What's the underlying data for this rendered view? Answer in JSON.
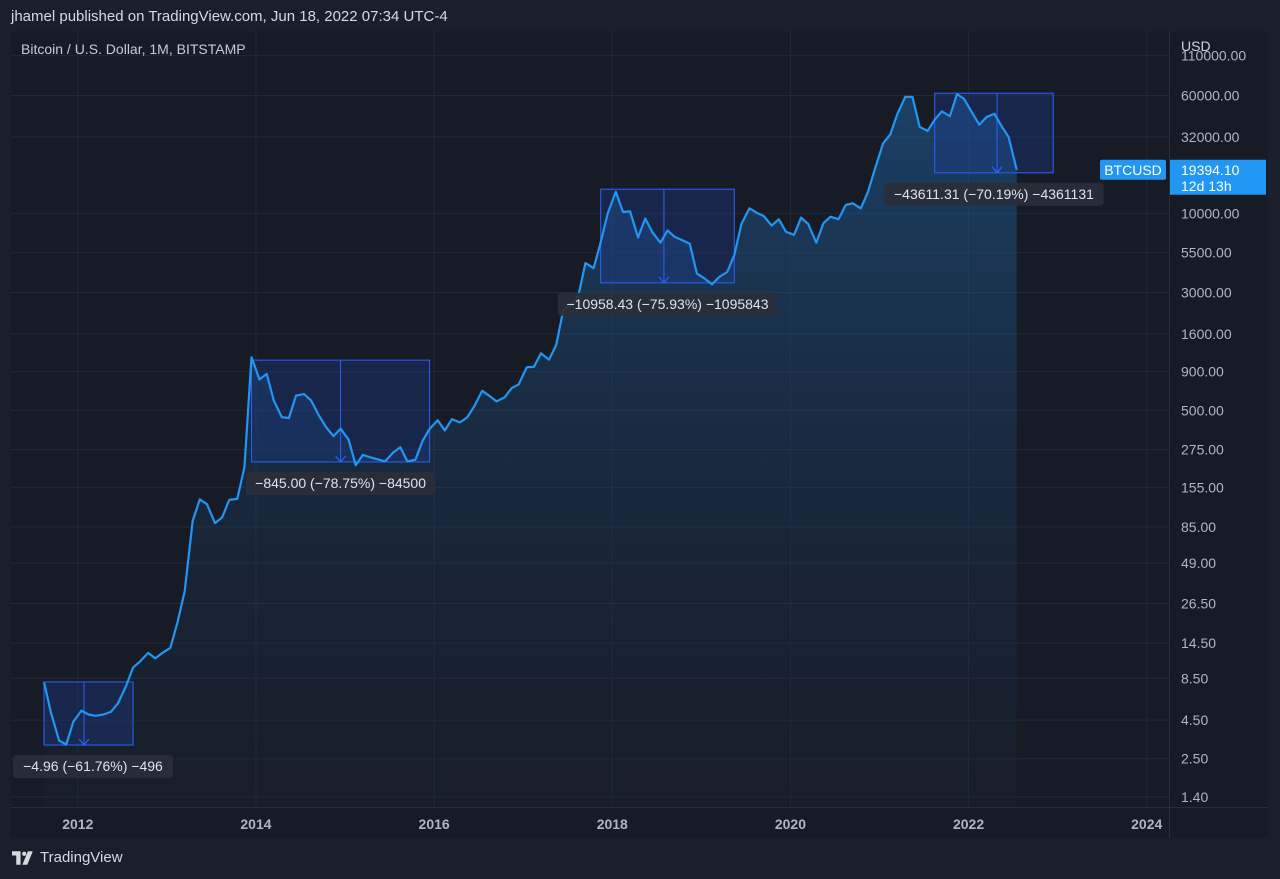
{
  "header": {
    "published_text": "jhamel published on TradingView.com, Jun 18, 2022 07:34 UTC-4",
    "symbol_title": "Bitcoin / U.S. Dollar, 1M, BITSTAMP"
  },
  "footer": {
    "brand_label": "TradingView",
    "logo_icon": "tradingview-logo-icon"
  },
  "colors": {
    "background": "#171b26",
    "line": "#2196f3",
    "box_fill": "#1e3a8a",
    "box_stroke": "#2962ff",
    "price_tag": "#2196f3"
  },
  "chart_data": {
    "type": "area",
    "scale": "log",
    "currency_label": "USD",
    "xlim": [
      2011.25,
      2024.25
    ],
    "ylim": [
      1.2,
      160000
    ],
    "x_ticks": [
      {
        "value": 2012,
        "label": "2012"
      },
      {
        "value": 2014,
        "label": "2014"
      },
      {
        "value": 2016,
        "label": "2016"
      },
      {
        "value": 2018,
        "label": "2018"
      },
      {
        "value": 2020,
        "label": "2020"
      },
      {
        "value": 2022,
        "label": "2022"
      },
      {
        "value": 2024,
        "label": "2024"
      }
    ],
    "y_ticks": [
      {
        "value": 110000,
        "label": "110000.00"
      },
      {
        "value": 60000,
        "label": "60000.00"
      },
      {
        "value": 32000,
        "label": "32000.00"
      },
      {
        "value": 10000,
        "label": "10000.00"
      },
      {
        "value": 5500,
        "label": "5500.00"
      },
      {
        "value": 3000,
        "label": "3000.00"
      },
      {
        "value": 1600,
        "label": "1600.00"
      },
      {
        "value": 900,
        "label": "900.00"
      },
      {
        "value": 500,
        "label": "500.00"
      },
      {
        "value": 275,
        "label": "275.00"
      },
      {
        "value": 155,
        "label": "155.00"
      },
      {
        "value": 85,
        "label": "85.00"
      },
      {
        "value": 49,
        "label": "49.00"
      },
      {
        "value": 26.5,
        "label": "26.50"
      },
      {
        "value": 14.5,
        "label": "14.50"
      },
      {
        "value": 8.5,
        "label": "8.50"
      },
      {
        "value": 4.5,
        "label": "4.50"
      },
      {
        "value": 2.5,
        "label": "2.50"
      },
      {
        "value": 1.4,
        "label": "1.40"
      }
    ],
    "series": [
      {
        "name": "BTCUSD",
        "points": [
          [
            2011.62,
            8.0
          ],
          [
            2011.7,
            5.0
          ],
          [
            2011.79,
            3.3
          ],
          [
            2011.87,
            3.1
          ],
          [
            2011.95,
            4.4
          ],
          [
            2012.04,
            5.2
          ],
          [
            2012.12,
            4.9
          ],
          [
            2012.2,
            4.8
          ],
          [
            2012.29,
            4.9
          ],
          [
            2012.37,
            5.1
          ],
          [
            2012.45,
            5.8
          ],
          [
            2012.54,
            7.5
          ],
          [
            2012.62,
            10.0
          ],
          [
            2012.7,
            11.0
          ],
          [
            2012.79,
            12.5
          ],
          [
            2012.87,
            11.5
          ],
          [
            2012.95,
            12.5
          ],
          [
            2013.04,
            13.5
          ],
          [
            2013.12,
            20.0
          ],
          [
            2013.2,
            32.0
          ],
          [
            2013.29,
            93.0
          ],
          [
            2013.37,
            129.0
          ],
          [
            2013.45,
            120.0
          ],
          [
            2013.54,
            90.0
          ],
          [
            2013.62,
            98.0
          ],
          [
            2013.7,
            128.0
          ],
          [
            2013.79,
            130.0
          ],
          [
            2013.87,
            210.0
          ],
          [
            2013.95,
            1120.0
          ],
          [
            2014.04,
            800.0
          ],
          [
            2014.12,
            870.0
          ],
          [
            2014.2,
            580.0
          ],
          [
            2014.29,
            450.0
          ],
          [
            2014.37,
            445.0
          ],
          [
            2014.45,
            625.0
          ],
          [
            2014.54,
            640.0
          ],
          [
            2014.62,
            580.0
          ],
          [
            2014.7,
            470.0
          ],
          [
            2014.79,
            385.0
          ],
          [
            2014.87,
            338.0
          ],
          [
            2014.95,
            378.0
          ],
          [
            2015.04,
            320.0
          ],
          [
            2015.12,
            217.0
          ],
          [
            2015.2,
            254.0
          ],
          [
            2015.29,
            244.0
          ],
          [
            2015.37,
            237.0
          ],
          [
            2015.45,
            230.0
          ],
          [
            2015.54,
            263.0
          ],
          [
            2015.62,
            285.0
          ],
          [
            2015.7,
            230.0
          ],
          [
            2015.79,
            236.0
          ],
          [
            2015.87,
            313.0
          ],
          [
            2015.95,
            378.0
          ],
          [
            2016.04,
            430.0
          ],
          [
            2016.12,
            368.0
          ],
          [
            2016.2,
            437.0
          ],
          [
            2016.29,
            416.0
          ],
          [
            2016.37,
            448.0
          ],
          [
            2016.45,
            531.0
          ],
          [
            2016.54,
            673.0
          ],
          [
            2016.62,
            624.0
          ],
          [
            2016.7,
            573.0
          ],
          [
            2016.79,
            609.0
          ],
          [
            2016.87,
            700.0
          ],
          [
            2016.95,
            742.0
          ],
          [
            2017.04,
            963.0
          ],
          [
            2017.12,
            968.0
          ],
          [
            2017.2,
            1190.0
          ],
          [
            2017.29,
            1080.0
          ],
          [
            2017.37,
            1350.0
          ],
          [
            2017.45,
            2300.0
          ],
          [
            2017.54,
            2480.0
          ],
          [
            2017.62,
            2870.0
          ],
          [
            2017.7,
            4700.0
          ],
          [
            2017.79,
            4340.0
          ],
          [
            2017.87,
            6450.0
          ],
          [
            2017.95,
            10000.0
          ],
          [
            2018.04,
            13880.0
          ],
          [
            2018.12,
            10200.0
          ],
          [
            2018.2,
            10300.0
          ],
          [
            2018.29,
            6930.0
          ],
          [
            2018.37,
            9240.0
          ],
          [
            2018.45,
            7500.0
          ],
          [
            2018.54,
            6400.0
          ],
          [
            2018.62,
            7700.0
          ],
          [
            2018.7,
            7000.0
          ],
          [
            2018.79,
            6620.0
          ],
          [
            2018.87,
            6300.0
          ],
          [
            2018.95,
            4000.0
          ],
          [
            2019.04,
            3700.0
          ],
          [
            2019.12,
            3400.0
          ],
          [
            2019.2,
            3800.0
          ],
          [
            2019.29,
            4100.0
          ],
          [
            2019.37,
            5300.0
          ],
          [
            2019.45,
            8500.0
          ],
          [
            2019.54,
            10800.0
          ],
          [
            2019.62,
            10100.0
          ],
          [
            2019.7,
            9600.0
          ],
          [
            2019.79,
            8300.0
          ],
          [
            2019.87,
            9150.0
          ],
          [
            2019.95,
            7550.0
          ],
          [
            2020.04,
            7200.0
          ],
          [
            2020.12,
            9350.0
          ],
          [
            2020.2,
            8500.0
          ],
          [
            2020.29,
            6400.0
          ],
          [
            2020.37,
            8600.0
          ],
          [
            2020.45,
            9500.0
          ],
          [
            2020.54,
            9140.0
          ],
          [
            2020.62,
            11350.0
          ],
          [
            2020.7,
            11650.0
          ],
          [
            2020.79,
            10780.0
          ],
          [
            2020.87,
            13800.0
          ],
          [
            2020.95,
            19700.0
          ],
          [
            2021.04,
            29000.0
          ],
          [
            2021.12,
            33100.0
          ],
          [
            2021.2,
            45200.0
          ],
          [
            2021.29,
            58800.0
          ],
          [
            2021.37,
            58700.0
          ],
          [
            2021.45,
            37300.0
          ],
          [
            2021.54,
            35000.0
          ],
          [
            2021.62,
            41500.0
          ],
          [
            2021.7,
            47100.0
          ],
          [
            2021.79,
            43800.0
          ],
          [
            2021.87,
            61300.0
          ],
          [
            2021.95,
            57000.0
          ],
          [
            2022.04,
            46200.0
          ],
          [
            2022.12,
            38500.0
          ],
          [
            2022.2,
            43200.0
          ],
          [
            2022.29,
            45500.0
          ],
          [
            2022.37,
            37700.0
          ],
          [
            2022.45,
            31800.0
          ],
          [
            2022.54,
            19394.1
          ]
        ]
      }
    ],
    "drawdowns": [
      {
        "x_start": 2011.62,
        "x_mid": 2012.07,
        "x_end": 2012.62,
        "top": 8.04,
        "bottom": 3.08,
        "label": "−4.96 (−61.76%) −496"
      },
      {
        "x_start": 2013.95,
        "x_mid": 2014.95,
        "x_end": 2015.95,
        "top": 1073.0,
        "bottom": 228.0,
        "label": "−845.00 (−78.75%) −84500"
      },
      {
        "x_start": 2017.87,
        "x_mid": 2018.58,
        "x_end": 2019.37,
        "top": 14432.0,
        "bottom": 3474.0,
        "label": "−10958.43 (−75.93%) −1095843"
      },
      {
        "x_start": 2021.62,
        "x_mid": 2022.32,
        "x_end": 2022.95,
        "top": 62130.0,
        "bottom": 18519.0,
        "label": "−43611.31 (−70.19%) −4361131"
      }
    ],
    "last_price": {
      "symbol": "BTCUSD",
      "price": "19394.10",
      "countdown": "12d 13h"
    }
  }
}
